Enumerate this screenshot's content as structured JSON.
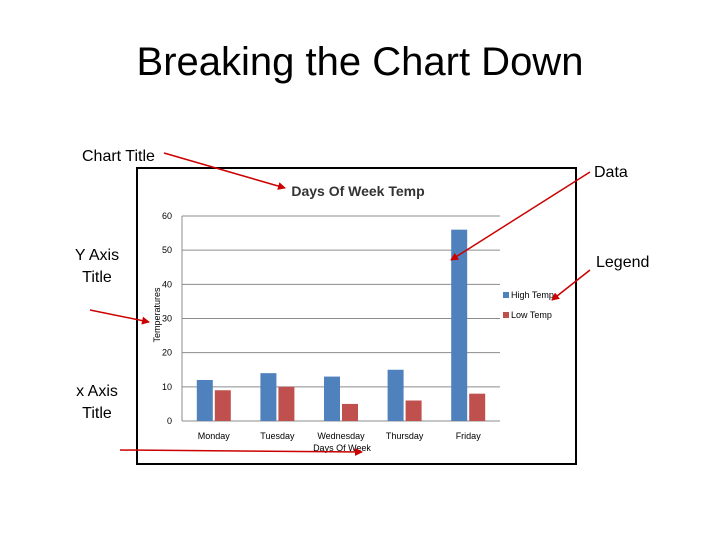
{
  "slide": {
    "title": "Breaking the Chart Down",
    "callouts": {
      "chart_title": "Chart Title",
      "data": "Data",
      "legend": "Legend",
      "y_axis_title": "Y Axis Title",
      "x_axis_title": "x Axis Title"
    }
  },
  "colors": {
    "high": "#4f81bd",
    "low": "#c0504d",
    "arrow": "#cc0000"
  },
  "chart_data": {
    "type": "bar",
    "title": "Days Of Week Temp",
    "xlabel": "Days Of Week",
    "ylabel": "Temperatures",
    "categories": [
      "Monday",
      "Tuesday",
      "Wednesday",
      "Thursday",
      "Friday"
    ],
    "series": [
      {
        "name": "High Temp",
        "values": [
          12,
          14,
          13,
          15,
          56
        ]
      },
      {
        "name": "Low Temp",
        "values": [
          9,
          10,
          5,
          6,
          8
        ]
      }
    ],
    "ylim": [
      0,
      60
    ],
    "yticks": [
      0,
      10,
      20,
      30,
      40,
      50,
      60
    ],
    "grid": true,
    "legend": "right"
  }
}
